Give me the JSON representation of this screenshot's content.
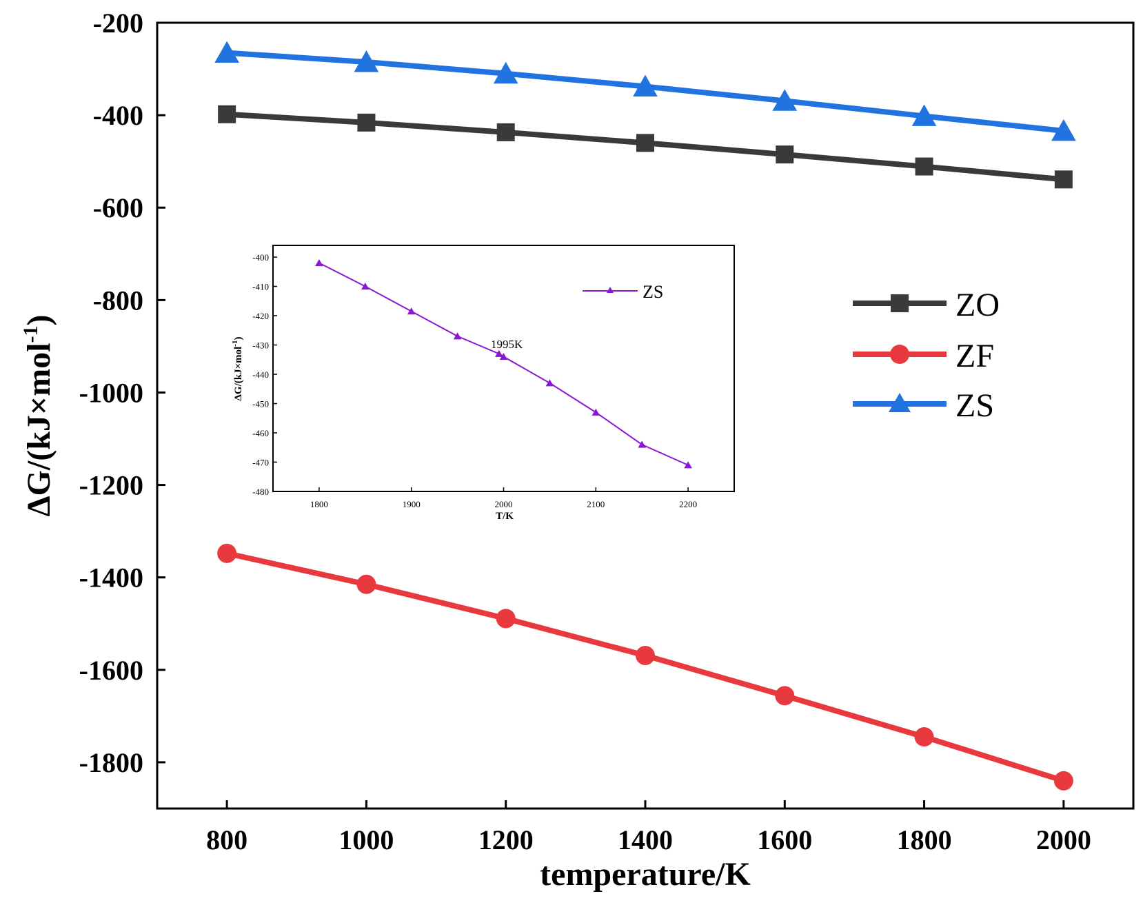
{
  "chart_data": [
    {
      "id": "main",
      "type": "line",
      "title": "",
      "xlabel": "temperature/K",
      "ylabel": "ΔG/(kJ×mol",
      "ylabel_sup": "-1",
      "ylabel_close": ")",
      "x": [
        800,
        1000,
        1200,
        1400,
        1600,
        1800,
        2000
      ],
      "xticks": [
        "800",
        "1000",
        "1200",
        "1400",
        "1600",
        "1800",
        "2000"
      ],
      "yticks": [
        "-200",
        "-400",
        "-600",
        "-800",
        "-1000",
        "-1200",
        "-1400",
        "-1600",
        "-1800"
      ],
      "xlim": [
        700,
        2100
      ],
      "ylim": [
        -1900,
        -200
      ],
      "legend_position": "right",
      "series": [
        {
          "name": "ZO",
          "color": "#3a3a3a",
          "marker": "square",
          "values": [
            -398,
            -416,
            -437,
            -460,
            -485,
            -511,
            -539
          ]
        },
        {
          "name": "ZF",
          "color": "#e8393f",
          "marker": "circle",
          "values": [
            -1348,
            -1415,
            -1489,
            -1569,
            -1656,
            -1745,
            -1840
          ]
        },
        {
          "name": "ZS",
          "color": "#2173df",
          "marker": "triangle",
          "values": [
            -265,
            -285,
            -310,
            -338,
            -369,
            -402,
            -434
          ]
        }
      ]
    },
    {
      "id": "inset",
      "type": "line",
      "title": "",
      "xlabel": "T/K",
      "ylabel": "ΔG/(kJ×mol",
      "ylabel_sup": "-1",
      "ylabel_close": ")",
      "x": [
        1800,
        1850,
        1900,
        1950,
        1995,
        2000,
        2050,
        2100,
        2150,
        2200
      ],
      "xticks": [
        "1800",
        "1900",
        "2000",
        "2100",
        "2200"
      ],
      "yticks": [
        "-400",
        "-410",
        "-420",
        "-430",
        "-440",
        "-450",
        "-460",
        "-470",
        "-480"
      ],
      "xlim": [
        1750,
        2250
      ],
      "ylim": [
        -480,
        -396
      ],
      "legend_position": "top-right",
      "annotation": "1995K",
      "series": [
        {
          "name": "ZS",
          "color": "#8a17d6",
          "marker": "triangle",
          "values": [
            -402,
            -410,
            -418.5,
            -427,
            -433,
            -434,
            -443,
            -453,
            -464,
            -471
          ]
        }
      ]
    }
  ]
}
